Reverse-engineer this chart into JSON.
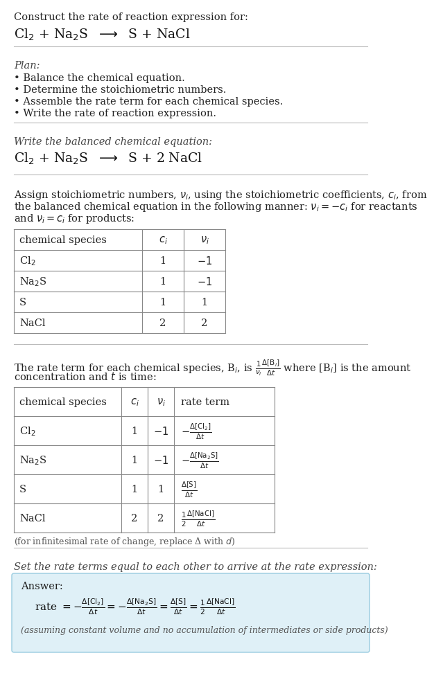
{
  "bg_color": "#ffffff",
  "answer_bg": "#dff0f7",
  "answer_border": "#99cce0",
  "fs": 10.5,
  "fs_small": 9.0,
  "fs_eq": 13.5,
  "title": "Construct the rate of reaction expression for:",
  "eq_unbalanced": "Cl$_2$ + Na$_2$S  $\\longrightarrow$  S + NaCl",
  "plan_header": "Plan:",
  "plan_items": [
    "• Balance the chemical equation.",
    "• Determine the stoichiometric numbers.",
    "• Assemble the rate term for each chemical species.",
    "• Write the rate of reaction expression."
  ],
  "balanced_header": "Write the balanced chemical equation:",
  "eq_balanced": "Cl$_2$ + Na$_2$S  $\\longrightarrow$  S + 2 NaCl",
  "stoich_para": [
    "Assign stoichiometric numbers, $\\nu_i$, using the stoichiometric coefficients, $c_i$, from",
    "the balanced chemical equation in the following manner: $\\nu_i = -c_i$ for reactants",
    "and $\\nu_i = c_i$ for products:"
  ],
  "t1_headers": [
    "chemical species",
    "$c_i$",
    "$\\nu_i$"
  ],
  "t1_rows": [
    [
      "Cl$_2$",
      "1",
      "$-1$"
    ],
    [
      "Na$_2$S",
      "1",
      "$-1$"
    ],
    [
      "S",
      "1",
      "1"
    ],
    [
      "NaCl",
      "2",
      "2"
    ]
  ],
  "rate_para": [
    "The rate term for each chemical species, B$_i$, is $\\frac{1}{\\nu_i}\\frac{\\Delta[\\mathrm{B}_i]}{\\Delta t}$ where [B$_i$] is the amount",
    "concentration and $t$ is time:"
  ],
  "t2_headers": [
    "chemical species",
    "$c_i$",
    "$\\nu_i$",
    "rate term"
  ],
  "t2_rows": [
    [
      "Cl$_2$",
      "1",
      "$-1$",
      "$-\\frac{\\Delta[\\mathrm{Cl_2}]}{\\Delta t}$"
    ],
    [
      "Na$_2$S",
      "1",
      "$-1$",
      "$-\\frac{\\Delta[\\mathrm{Na_2S}]}{\\Delta t}$"
    ],
    [
      "S",
      "1",
      "1",
      "$\\frac{\\Delta[\\mathrm{S}]}{\\Delta t}$"
    ],
    [
      "NaCl",
      "2",
      "2",
      "$\\frac{1}{2}\\frac{\\Delta[\\mathrm{NaCl}]}{\\Delta t}$"
    ]
  ],
  "infin_note": "(for infinitesimal rate of change, replace Δ with $d$)",
  "set_rate_text": "Set the rate terms equal to each other to arrive at the rate expression:",
  "answer_label": "Answer:",
  "answer_eq": "rate $= -\\frac{\\Delta[\\mathrm{Cl_2}]}{\\Delta t} = -\\frac{\\Delta[\\mathrm{Na_2S}]}{\\Delta t} = \\frac{\\Delta[\\mathrm{S}]}{\\Delta t} = \\frac{1}{2}\\frac{\\Delta[\\mathrm{NaCl}]}{\\Delta t}$",
  "answer_note": "(assuming constant volume and no accumulation of intermediates or side products)"
}
